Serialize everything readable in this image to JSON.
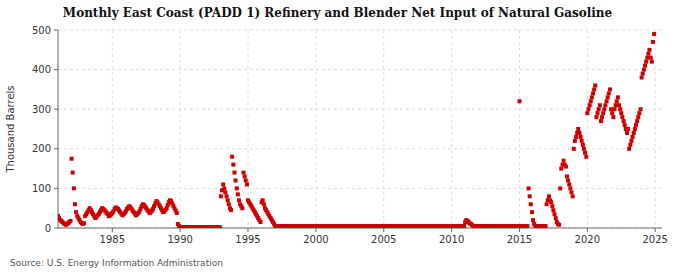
{
  "chart_data": {
    "type": "scatter",
    "title": "Monthly East Coast (PADD 1) Refinery and Blender Net Input of Natural Gasoline",
    "ylabel": "Thousand Barrels",
    "annotations": [
      "Source: U.S. Energy Information Administration"
    ],
    "color": "#cc0000",
    "marker": "square",
    "grid": true,
    "xlim": [
      1981.0,
      2025.5
    ],
    "ylim": [
      0,
      500
    ],
    "xticks": [
      1985,
      1990,
      1995,
      2000,
      2005,
      2010,
      2015,
      2020,
      2025
    ],
    "yticks": [
      0,
      100,
      200,
      300,
      400,
      500
    ],
    "x": [
      1981.0,
      1981.08,
      1981.17,
      1981.25,
      1981.33,
      1981.42,
      1981.5,
      1981.58,
      1981.67,
      1981.75,
      1981.83,
      1981.92,
      1982.0,
      1982.08,
      1982.17,
      1982.25,
      1982.33,
      1982.42,
      1982.5,
      1982.58,
      1982.67,
      1982.75,
      1982.83,
      1982.92,
      1983.0,
      1983.08,
      1983.17,
      1983.25,
      1983.33,
      1983.42,
      1983.5,
      1983.58,
      1983.67,
      1983.75,
      1983.83,
      1983.92,
      1984.0,
      1984.08,
      1984.17,
      1984.25,
      1984.33,
      1984.42,
      1984.5,
      1984.58,
      1984.67,
      1984.75,
      1984.83,
      1984.92,
      1985.0,
      1985.08,
      1985.17,
      1985.25,
      1985.33,
      1985.42,
      1985.5,
      1985.58,
      1985.67,
      1985.75,
      1985.83,
      1985.92,
      1986.0,
      1986.08,
      1986.17,
      1986.25,
      1986.33,
      1986.42,
      1986.5,
      1986.58,
      1986.67,
      1986.75,
      1986.83,
      1986.92,
      1987.0,
      1987.08,
      1987.17,
      1987.25,
      1987.33,
      1987.42,
      1987.5,
      1987.58,
      1987.67,
      1987.75,
      1987.83,
      1987.92,
      1988.0,
      1988.08,
      1988.17,
      1988.25,
      1988.33,
      1988.42,
      1988.5,
      1988.58,
      1988.67,
      1988.75,
      1988.83,
      1988.92,
      1989.0,
      1989.08,
      1989.17,
      1989.25,
      1989.33,
      1989.42,
      1989.5,
      1989.58,
      1989.67,
      1989.75,
      1989.83,
      1989.92,
      1990.0,
      1990.08,
      1990.17,
      1990.25,
      1990.33,
      1990.42,
      1990.5,
      1990.58,
      1990.67,
      1990.75,
      1990.83,
      1990.92,
      1991.0,
      1991.08,
      1991.17,
      1991.25,
      1991.33,
      1991.42,
      1991.5,
      1991.58,
      1991.67,
      1991.75,
      1991.83,
      1991.92,
      1992.0,
      1992.08,
      1992.17,
      1992.25,
      1992.33,
      1992.42,
      1992.5,
      1992.58,
      1992.67,
      1992.75,
      1992.83,
      1992.92,
      1993.0,
      1993.08,
      1993.17,
      1993.25,
      1993.33,
      1993.42,
      1993.5,
      1993.58,
      1993.67,
      1993.75,
      1993.83,
      1993.92,
      1994.0,
      1994.08,
      1994.17,
      1994.25,
      1994.33,
      1994.42,
      1994.5,
      1994.58,
      1994.67,
      1994.75,
      1994.83,
      1994.92,
      1995.0,
      1995.08,
      1995.17,
      1995.25,
      1995.33,
      1995.42,
      1995.5,
      1995.58,
      1995.67,
      1995.75,
      1995.83,
      1995.92,
      1996.0,
      1996.08,
      1996.17,
      1996.25,
      1996.33,
      1996.42,
      1996.5,
      1996.58,
      1996.67,
      1996.75,
      1996.83,
      1996.92,
      1997.0,
      1997.08,
      1997.17,
      1997.25,
      1997.33,
      1997.42,
      1997.5,
      1997.58,
      1997.67,
      1997.75,
      1997.83,
      1997.92,
      1998.0,
      1998.08,
      1998.17,
      1998.25,
      1998.33,
      1998.42,
      1998.5,
      1998.58,
      1998.67,
      1998.75,
      1998.83,
      1998.92,
      1999.0,
      1999.08,
      1999.17,
      1999.25,
      1999.33,
      1999.42,
      1999.5,
      1999.58,
      1999.67,
      1999.75,
      1999.83,
      1999.92,
      2000.0,
      2000.08,
      2000.17,
      2000.25,
      2000.33,
      2000.42,
      2000.5,
      2000.58,
      2000.67,
      2000.75,
      2000.83,
      2000.92,
      2001.0,
      2001.08,
      2001.17,
      2001.25,
      2001.33,
      2001.42,
      2001.5,
      2001.58,
      2001.67,
      2001.75,
      2001.83,
      2001.92,
      2002.0,
      2002.08,
      2002.17,
      2002.25,
      2002.33,
      2002.42,
      2002.5,
      2002.58,
      2002.67,
      2002.75,
      2002.83,
      2002.92,
      2003.0,
      2003.08,
      2003.17,
      2003.25,
      2003.33,
      2003.42,
      2003.5,
      2003.58,
      2003.67,
      2003.75,
      2003.83,
      2003.92,
      2004.0,
      2004.08,
      2004.17,
      2004.25,
      2004.33,
      2004.42,
      2004.5,
      2004.58,
      2004.67,
      2004.75,
      2004.83,
      2004.92,
      2005.0,
      2005.08,
      2005.17,
      2005.25,
      2005.33,
      2005.42,
      2005.5,
      2005.58,
      2005.67,
      2005.75,
      2005.83,
      2005.92,
      2006.0,
      2006.08,
      2006.17,
      2006.25,
      2006.33,
      2006.42,
      2006.5,
      2006.58,
      2006.67,
      2006.75,
      2006.83,
      2006.92,
      2007.0,
      2007.08,
      2007.17,
      2007.25,
      2007.33,
      2007.42,
      2007.5,
      2007.58,
      2007.67,
      2007.75,
      2007.83,
      2007.92,
      2008.0,
      2008.08,
      2008.17,
      2008.25,
      2008.33,
      2008.42,
      2008.5,
      2008.58,
      2008.67,
      2008.75,
      2008.83,
      2008.92,
      2009.0,
      2009.08,
      2009.17,
      2009.25,
      2009.33,
      2009.42,
      2009.5,
      2009.58,
      2009.67,
      2009.75,
      2009.83,
      2009.92,
      2010.0,
      2010.08,
      2010.17,
      2010.25,
      2010.33,
      2010.42,
      2010.5,
      2010.58,
      2010.67,
      2010.75,
      2010.83,
      2010.92,
      2011.0,
      2011.08,
      2011.17,
      2011.25,
      2011.33,
      2011.42,
      2011.5,
      2011.58,
      2011.67,
      2011.75,
      2011.83,
      2011.92,
      2012.0,
      2012.08,
      2012.17,
      2012.25,
      2012.33,
      2012.42,
      2012.5,
      2012.58,
      2012.67,
      2012.75,
      2012.83,
      2012.92,
      2013.0,
      2013.08,
      2013.17,
      2013.25,
      2013.33,
      2013.42,
      2013.5,
      2013.58,
      2013.67,
      2013.75,
      2013.83,
      2013.92,
      2014.0,
      2014.08,
      2014.17,
      2014.25,
      2014.33,
      2014.42,
      2014.5,
      2014.58,
      2014.67,
      2014.75,
      2014.83,
      2014.92,
      2015.0,
      2015.08,
      2015.17,
      2015.25,
      2015.33,
      2015.42,
      2015.5,
      2015.58,
      2015.67,
      2015.75,
      2015.83,
      2015.92,
      2016.0,
      2016.08,
      2016.17,
      2016.25,
      2016.33,
      2016.42,
      2016.5,
      2016.58,
      2016.67,
      2016.75,
      2016.83,
      2016.92,
      2017.0,
      2017.08,
      2017.17,
      2017.25,
      2017.33,
      2017.42,
      2017.5,
      2017.58,
      2017.67,
      2017.75,
      2017.83,
      2017.92,
      2018.0,
      2018.08,
      2018.17,
      2018.25,
      2018.33,
      2018.42,
      2018.5,
      2018.58,
      2018.67,
      2018.75,
      2018.83,
      2018.92,
      2019.0,
      2019.08,
      2019.17,
      2019.25,
      2019.33,
      2019.42,
      2019.5,
      2019.58,
      2019.67,
      2019.75,
      2019.83,
      2019.92,
      2020.0,
      2020.08,
      2020.17,
      2020.25,
      2020.33,
      2020.42,
      2020.5,
      2020.58,
      2020.67,
      2020.75,
      2020.83,
      2020.92,
      2021.0,
      2021.08,
      2021.17,
      2021.25,
      2021.33,
      2021.42,
      2021.5,
      2021.58,
      2021.67,
      2021.75,
      2021.83,
      2021.92,
      2022.0,
      2022.08,
      2022.17,
      2022.25,
      2022.33,
      2022.42,
      2022.5,
      2022.58,
      2022.67,
      2022.75,
      2022.83,
      2022.92,
      2023.0,
      2023.08,
      2023.17,
      2023.25,
      2023.33,
      2023.42,
      2023.5,
      2023.58,
      2023.67,
      2023.75,
      2023.83,
      2023.92,
      2024.0,
      2024.08,
      2024.17,
      2024.25,
      2024.33,
      2024.42,
      2024.5,
      2024.58,
      2024.67,
      2024.75,
      2024.83,
      2024.92
    ],
    "values": [
      30,
      25,
      20,
      18,
      15,
      12,
      10,
      8,
      10,
      12,
      15,
      18,
      175,
      140,
      100,
      60,
      40,
      30,
      25,
      20,
      15,
      12,
      10,
      12,
      30,
      35,
      40,
      45,
      50,
      45,
      40,
      35,
      30,
      25,
      28,
      32,
      35,
      40,
      45,
      50,
      48,
      45,
      42,
      38,
      35,
      30,
      32,
      35,
      38,
      42,
      48,
      52,
      50,
      48,
      44,
      40,
      36,
      32,
      35,
      38,
      42,
      48,
      52,
      55,
      52,
      48,
      44,
      40,
      36,
      32,
      35,
      38,
      42,
      48,
      55,
      60,
      58,
      54,
      50,
      46,
      42,
      38,
      40,
      44,
      48,
      55,
      62,
      68,
      65,
      60,
      55,
      50,
      45,
      40,
      42,
      46,
      50,
      58,
      65,
      70,
      68,
      62,
      56,
      50,
      44,
      38,
      10,
      5,
      2,
      2,
      2,
      2,
      2,
      2,
      2,
      2,
      2,
      2,
      2,
      2,
      2,
      2,
      2,
      2,
      2,
      2,
      2,
      2,
      2,
      2,
      2,
      2,
      2,
      2,
      2,
      2,
      2,
      2,
      2,
      2,
      2,
      2,
      2,
      2,
      80,
      95,
      110,
      100,
      90,
      80,
      70,
      60,
      50,
      45,
      180,
      160,
      140,
      120,
      100,
      85,
      70,
      60,
      55,
      50,
      140,
      130,
      120,
      110,
      70,
      65,
      60,
      55,
      50,
      45,
      40,
      35,
      30,
      25,
      20,
      15,
      65,
      70,
      60,
      50,
      45,
      40,
      35,
      30,
      25,
      20,
      15,
      10,
      5,
      5,
      5,
      5,
      5,
      5,
      5,
      5,
      5,
      5,
      5,
      5,
      5,
      5,
      5,
      5,
      5,
      5,
      5,
      5,
      5,
      5,
      5,
      5,
      5,
      5,
      5,
      5,
      5,
      5,
      5,
      5,
      5,
      5,
      5,
      5,
      5,
      5,
      5,
      5,
      5,
      5,
      5,
      5,
      5,
      5,
      5,
      5,
      5,
      5,
      5,
      5,
      5,
      5,
      5,
      5,
      5,
      5,
      5,
      5,
      5,
      5,
      5,
      5,
      5,
      5,
      5,
      5,
      5,
      5,
      5,
      5,
      5,
      5,
      5,
      5,
      5,
      5,
      5,
      5,
      5,
      5,
      5,
      5,
      5,
      5,
      5,
      5,
      5,
      5,
      5,
      5,
      5,
      5,
      5,
      5,
      5,
      5,
      5,
      5,
      5,
      5,
      5,
      5,
      5,
      5,
      5,
      5,
      5,
      5,
      5,
      5,
      5,
      5,
      5,
      5,
      5,
      5,
      5,
      5,
      5,
      5,
      5,
      5,
      5,
      5,
      5,
      5,
      5,
      5,
      5,
      5,
      5,
      5,
      5,
      5,
      5,
      5,
      5,
      5,
      5,
      5,
      5,
      5,
      5,
      5,
      5,
      5,
      5,
      5,
      5,
      5,
      5,
      5,
      5,
      5,
      5,
      5,
      5,
      5,
      5,
      5,
      5,
      5,
      5,
      5,
      5,
      5,
      15,
      20,
      18,
      15,
      12,
      10,
      8,
      5,
      5,
      5,
      5,
      5,
      5,
      5,
      5,
      5,
      5,
      5,
      5,
      5,
      5,
      5,
      5,
      5,
      5,
      5,
      5,
      5,
      5,
      5,
      5,
      5,
      5,
      5,
      5,
      5,
      5,
      5,
      5,
      5,
      5,
      5,
      5,
      5,
      5,
      5,
      5,
      5,
      320,
      5,
      5,
      5,
      5,
      5,
      5,
      5,
      100,
      80,
      60,
      40,
      20,
      10,
      5,
      5,
      5,
      5,
      5,
      5,
      5,
      5,
      5,
      5,
      60,
      70,
      80,
      70,
      65,
      55,
      45,
      35,
      25,
      15,
      10,
      8,
      100,
      150,
      160,
      170,
      160,
      155,
      130,
      120,
      110,
      100,
      90,
      80,
      200,
      220,
      230,
      240,
      250,
      240,
      230,
      220,
      210,
      200,
      190,
      180,
      290,
      300,
      310,
      320,
      330,
      340,
      350,
      360,
      280,
      290,
      300,
      310,
      270,
      280,
      290,
      300,
      310,
      320,
      330,
      340,
      350,
      300,
      290,
      280,
      300,
      310,
      320,
      330,
      310,
      300,
      290,
      280,
      270,
      260,
      250,
      240,
      250,
      200,
      210,
      220,
      230,
      240,
      250,
      260,
      270,
      280,
      290,
      300,
      380,
      390,
      400,
      410,
      420,
      430,
      440,
      450,
      430,
      420,
      470,
      490
    ]
  }
}
